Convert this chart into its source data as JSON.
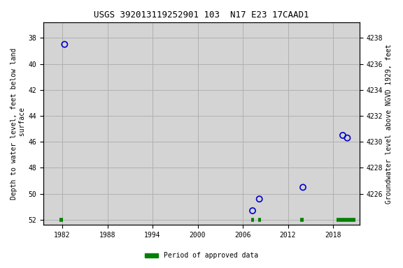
{
  "title": "USGS 392013119252901 103  N17 E23 17CAAD1",
  "ylabel_left": "Depth to water level, feet below land\n surface",
  "ylabel_right": "Groundwater level above NGVD 1929, feet",
  "xlim": [
    1979.5,
    2021.5
  ],
  "ylim_left": [
    52.4,
    36.8
  ],
  "ylim_right": [
    4223.6,
    4239.2
  ],
  "xticks": [
    1982,
    1988,
    1994,
    2000,
    2006,
    2012,
    2018
  ],
  "yticks_left": [
    38,
    40,
    42,
    44,
    46,
    48,
    50,
    52
  ],
  "yticks_right": [
    4238,
    4236,
    4234,
    4232,
    4230,
    4228,
    4226
  ],
  "scatter_x": [
    1982.3,
    2007.3,
    2008.2,
    2014.0,
    2019.3,
    2019.9
  ],
  "scatter_y": [
    38.5,
    51.3,
    50.4,
    49.5,
    45.5,
    45.7
  ],
  "scatter_color": "#0000cc",
  "approved_segments": [
    [
      1981.6,
      1982.1
    ],
    [
      2007.1,
      2007.5
    ],
    [
      2008.0,
      2008.4
    ],
    [
      2013.6,
      2014.1
    ],
    [
      2018.5,
      2021.0
    ]
  ],
  "approved_color": "#008000",
  "approved_y": 52,
  "plot_bg_color": "#d4d4d4",
  "fig_bg_color": "#ffffff",
  "grid_color": "#b0b0b0",
  "title_fontsize": 9,
  "label_fontsize": 7,
  "tick_fontsize": 7,
  "legend_fontsize": 7
}
